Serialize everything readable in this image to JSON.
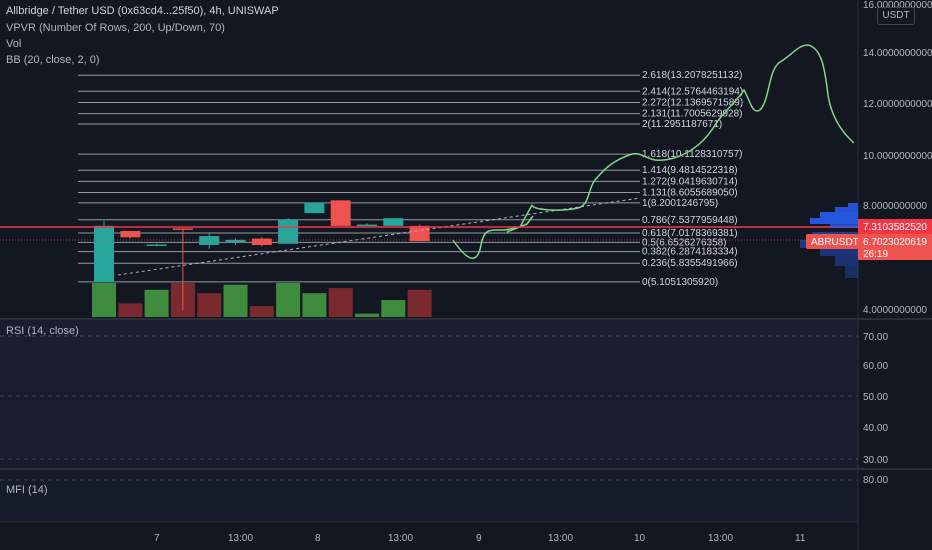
{
  "header": {
    "title": "Allbridge / Tether USD (0x63cd4...25f50), 4h, UNISWAP",
    "indicators": [
      "VPVR (Number Of Rows, 200, Up/Down, 70)",
      "Vol",
      "BB (20, close, 2, 0)"
    ]
  },
  "price_axis": {
    "currency": "USDT",
    "ticks": [
      "16.0000000000",
      "14.0000000000",
      "12.0000000000",
      "10.0000000000",
      "8.0000000000",
      "4.0000000000"
    ]
  },
  "price_labels": {
    "red_line": "7.3103582520",
    "symbol": "ABRUSDT",
    "current": "6.7023020619",
    "countdown": "26:19"
  },
  "fib_levels": [
    {
      "ratio": "2.618",
      "value": "13.2078251132",
      "label": "2.618(13.2078251132)"
    },
    {
      "ratio": "2.414",
      "value": "12.5764463194",
      "label": "2.414(12.5764463194)"
    },
    {
      "ratio": "2.272",
      "value": "12.1369571589",
      "label": "2.272(12.1369571589)"
    },
    {
      "ratio": "2.131",
      "value": "11.7005629928",
      "label": "2.131(11.7005629928)"
    },
    {
      "ratio": "2",
      "value": "11.2951187671",
      "label": "2(11.2951187671)"
    },
    {
      "ratio": "1.618",
      "value": "10.1128310757",
      "label": "1.618(10.1128310757)"
    },
    {
      "ratio": "1.414",
      "value": "9.4814522318",
      "label": "1.414(9.4814522318)"
    },
    {
      "ratio": "1.272",
      "value": "9.0419630714",
      "label": "1.272(9.0419630714)"
    },
    {
      "ratio": "1.131",
      "value": "8.6055689050",
      "label": "1.131(8.6055689050)"
    },
    {
      "ratio": "1",
      "value": "8.2001246795",
      "label": "1(8.2001246795)"
    },
    {
      "ratio": "0.786",
      "value": "7.5377959448",
      "label": "0.786(7.5377959448)"
    },
    {
      "ratio": "0.618",
      "value": "7.0178369381",
      "label": "0.618(7.0178369381)"
    },
    {
      "ratio": "0.5",
      "value": "6.6526276358",
      "label": "0.5(6.6526276358)"
    },
    {
      "ratio": "0.382",
      "value": "6.2874183334",
      "label": "0.382(6.2874183334)"
    },
    {
      "ratio": "0.236",
      "value": "5.8355491966",
      "label": "0.236(5.8355491966)"
    },
    {
      "ratio": "0",
      "value": "5.1051305920",
      "label": "0(5.1051305920)"
    }
  ],
  "rsi_pane": {
    "label": "RSI (14, close)",
    "ticks": [
      "70.00",
      "60.00",
      "50.00",
      "40.00",
      "30.00"
    ]
  },
  "mfi_pane": {
    "label": "MFI (14)",
    "ticks": [
      "80.00"
    ]
  },
  "time_axis": {
    "labels": [
      "7",
      "13:00",
      "8",
      "13:00",
      "9",
      "13:00",
      "10",
      "13:00",
      "11"
    ]
  },
  "colors": {
    "up": "#26a69a",
    "down": "#ef5350",
    "vol_up": "#3f8c3f",
    "vol_down": "#7a2a2e",
    "projection": "#7fd68a",
    "red_line": "#f23645",
    "background": "#131722"
  },
  "chart_data": {
    "type": "candlestick",
    "candles": [
      {
        "open": 5.1,
        "high": 7.5,
        "low": 5.1,
        "close": 7.3,
        "dir": "up"
      },
      {
        "open": 7.1,
        "high": 7.1,
        "low": 6.8,
        "close": 6.85,
        "dir": "down"
      },
      {
        "open": 6.55,
        "high": 6.6,
        "low": 6.5,
        "close": 6.57,
        "dir": "up"
      },
      {
        "open": 7.2,
        "high": 7.2,
        "low": 4.0,
        "close": 7.15,
        "dir": "down"
      },
      {
        "open": 6.55,
        "high": 7.0,
        "low": 6.4,
        "close": 6.9,
        "dir": "up"
      },
      {
        "open": 6.65,
        "high": 6.8,
        "low": 6.55,
        "close": 6.75,
        "dir": "up"
      },
      {
        "open": 6.8,
        "high": 6.85,
        "low": 6.5,
        "close": 6.55,
        "dir": "down"
      },
      {
        "open": 6.6,
        "high": 7.6,
        "low": 6.6,
        "close": 7.55,
        "dir": "up"
      },
      {
        "open": 7.8,
        "high": 8.2,
        "low": 7.8,
        "close": 8.2,
        "dir": "up"
      },
      {
        "open": 8.3,
        "high": 8.3,
        "low": 7.3,
        "close": 7.3,
        "dir": "down"
      },
      {
        "open": 7.35,
        "high": 7.4,
        "low": 7.3,
        "close": 7.35,
        "dir": "up"
      },
      {
        "open": 7.3,
        "high": 7.6,
        "low": 7.3,
        "close": 7.6,
        "dir": "up"
      },
      {
        "open": 7.3,
        "high": 7.35,
        "low": 6.7,
        "close": 6.7,
        "dir": "down"
      }
    ],
    "volumes": [
      {
        "v": 1.0,
        "dir": "up"
      },
      {
        "v": 0.4,
        "dir": "down"
      },
      {
        "v": 0.8,
        "dir": "up"
      },
      {
        "v": 1.0,
        "dir": "down"
      },
      {
        "v": 0.7,
        "dir": "down"
      },
      {
        "v": 0.95,
        "dir": "up"
      },
      {
        "v": 0.32,
        "dir": "down"
      },
      {
        "v": 1.0,
        "dir": "up"
      },
      {
        "v": 0.7,
        "dir": "up"
      },
      {
        "v": 0.85,
        "dir": "down"
      },
      {
        "v": 0.1,
        "dir": "up"
      },
      {
        "v": 0.5,
        "dir": "up"
      },
      {
        "v": 0.8,
        "dir": "down"
      }
    ]
  }
}
